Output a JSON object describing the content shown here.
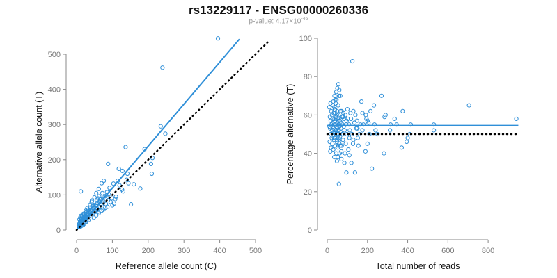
{
  "title": "rs13229117 - ENSG00000260336",
  "subtitle": {
    "prefix": "p-value: 4.17",
    "times": "×10",
    "exponent": "-46"
  },
  "colors": {
    "points": "#2f8fd8",
    "fit_line": "#2f8fd8",
    "reference_line": "#000000",
    "axis": "#888888"
  },
  "chart_data": [
    {
      "type": "scatter",
      "xlabel": "Reference allele count (C)",
      "ylabel": "Alternative allele count (T)",
      "xlim": [
        0,
        500
      ],
      "ylim": [
        0,
        500
      ],
      "xticks": [
        0,
        100,
        200,
        300,
        400,
        500
      ],
      "yticks": [
        0,
        100,
        200,
        300,
        400,
        500
      ],
      "grid": false,
      "lines": [
        {
          "style": "solid",
          "color": "#2f8fd8",
          "x": [
            0,
            455
          ],
          "y": [
            0,
            543
          ]
        },
        {
          "style": "dotted",
          "color": "#000000",
          "x": [
            0,
            540
          ],
          "y": [
            0,
            540
          ]
        }
      ],
      "points": [
        [
          395,
          545
        ],
        [
          240,
          462
        ],
        [
          235,
          295
        ],
        [
          248,
          274
        ],
        [
          137,
          236
        ],
        [
          190,
          230
        ],
        [
          212,
          205
        ],
        [
          208,
          188
        ],
        [
          210,
          160
        ],
        [
          178,
          118
        ],
        [
          152,
          73
        ],
        [
          128,
          168
        ],
        [
          118,
          174
        ],
        [
          88,
          188
        ],
        [
          140,
          143
        ],
        [
          142,
          160
        ],
        [
          115,
          140
        ],
        [
          120,
          127
        ],
        [
          103,
          132
        ],
        [
          92,
          120
        ],
        [
          85,
          108
        ],
        [
          70,
          133
        ],
        [
          76,
          140
        ],
        [
          62,
          117
        ],
        [
          72,
          105
        ],
        [
          55,
          105
        ],
        [
          50,
          93
        ],
        [
          60,
          90
        ],
        [
          43,
          84
        ],
        [
          48,
          71
        ],
        [
          38,
          64
        ],
        [
          33,
          58
        ],
        [
          28,
          53
        ],
        [
          24,
          49
        ],
        [
          20,
          43
        ],
        [
          17,
          38
        ],
        [
          14,
          33
        ],
        [
          12,
          29
        ],
        [
          10,
          25
        ],
        [
          9,
          21
        ],
        [
          8,
          18
        ],
        [
          7,
          16
        ],
        [
          12,
          110
        ],
        [
          80,
          63
        ],
        [
          95,
          80
        ],
        [
          105,
          75
        ],
        [
          110,
          95
        ],
        [
          127,
          115
        ],
        [
          130,
          110
        ],
        [
          160,
          130
        ],
        [
          145,
          133
        ],
        [
          83,
          98
        ],
        [
          66,
          87
        ],
        [
          57,
          77
        ],
        [
          45,
          68
        ],
        [
          40,
          58
        ],
        [
          36,
          52
        ],
        [
          31,
          47
        ],
        [
          27,
          44
        ],
        [
          24,
          40
        ],
        [
          21,
          36
        ],
        [
          18,
          32
        ],
        [
          15,
          28
        ],
        [
          13,
          26
        ],
        [
          11,
          22
        ],
        [
          9,
          19
        ],
        [
          16,
          22
        ],
        [
          20,
          28
        ],
        [
          25,
          30
        ],
        [
          30,
          38
        ],
        [
          35,
          40
        ],
        [
          40,
          45
        ],
        [
          46,
          50
        ],
        [
          52,
          55
        ],
        [
          58,
          60
        ],
        [
          65,
          65
        ],
        [
          70,
          72
        ],
        [
          75,
          80
        ],
        [
          88,
          85
        ],
        [
          98,
          90
        ],
        [
          108,
          88
        ],
        [
          28,
          25
        ],
        [
          22,
          18
        ],
        [
          18,
          14
        ],
        [
          14,
          12
        ],
        [
          11,
          10
        ],
        [
          9,
          8
        ],
        [
          13,
          17
        ],
        [
          17,
          24
        ],
        [
          23,
          32
        ],
        [
          29,
          36
        ],
        [
          34,
          44
        ],
        [
          39,
          51
        ],
        [
          44,
          59
        ],
        [
          49,
          64
        ],
        [
          54,
          69
        ],
        [
          59,
          76
        ],
        [
          64,
          80
        ],
        [
          69,
          88
        ],
        [
          79,
          96
        ],
        [
          90,
          102
        ],
        [
          38,
          72
        ],
        [
          42,
          80
        ],
        [
          30,
          62
        ],
        [
          26,
          55
        ],
        [
          19,
          46
        ],
        [
          15,
          40
        ],
        [
          48,
          35
        ],
        [
          55,
          42
        ],
        [
          62,
          48
        ],
        [
          70,
          55
        ],
        [
          33,
          28
        ],
        [
          26,
          22
        ],
        [
          20,
          20
        ],
        [
          60,
          52
        ],
        [
          75,
          58
        ],
        [
          82,
          74
        ],
        [
          86,
          66
        ],
        [
          100,
          70
        ],
        [
          8,
          30
        ],
        [
          10,
          35
        ],
        [
          12,
          40
        ],
        [
          6,
          12
        ],
        [
          7,
          9
        ],
        [
          10,
          13
        ],
        [
          16,
          18
        ],
        [
          19,
          26
        ],
        [
          22,
          30
        ],
        [
          27,
          34
        ],
        [
          32,
          42
        ],
        [
          37,
          48
        ],
        [
          41,
          54
        ],
        [
          47,
          61
        ],
        [
          53,
          70
        ],
        [
          57,
          84
        ],
        [
          63,
          96
        ],
        [
          68,
          75
        ],
        [
          73,
          86
        ]
      ]
    },
    {
      "type": "scatter",
      "xlabel": "Total number of reads",
      "ylabel": "Percentage alternative (T)",
      "xlim": [
        0,
        900
      ],
      "ylim": [
        0,
        100
      ],
      "xticks": [
        0,
        200,
        400,
        600,
        800
      ],
      "yticks": [
        0,
        20,
        40,
        60,
        80,
        100
      ],
      "grid": false,
      "lines": [
        {
          "style": "solid",
          "color": "#2f8fd8",
          "x": [
            0,
            950
          ],
          "y": [
            54.5,
            54.5
          ]
        },
        {
          "style": "dotted",
          "color": "#000000",
          "x": [
            0,
            950
          ],
          "y": [
            50,
            50
          ]
        }
      ],
      "points": [
        [
          940,
          58
        ],
        [
          705,
          65
        ],
        [
          530,
          55
        ],
        [
          530,
          52
        ],
        [
          415,
          55
        ],
        [
          410,
          50
        ],
        [
          400,
          48
        ],
        [
          395,
          46
        ],
        [
          375,
          62
        ],
        [
          370,
          43
        ],
        [
          345,
          55
        ],
        [
          335,
          58
        ],
        [
          315,
          55
        ],
        [
          312,
          52
        ],
        [
          290,
          60
        ],
        [
          285,
          59
        ],
        [
          282,
          40
        ],
        [
          270,
          70
        ],
        [
          250,
          50
        ],
        [
          240,
          52
        ],
        [
          235,
          55
        ],
        [
          232,
          65
        ],
        [
          222,
          32
        ],
        [
          215,
          62
        ],
        [
          210,
          50
        ],
        [
          205,
          56
        ],
        [
          200,
          45
        ],
        [
          195,
          58
        ],
        [
          192,
          60
        ],
        [
          190,
          41
        ],
        [
          180,
          55
        ],
        [
          175,
          52
        ],
        [
          170,
          67
        ],
        [
          165,
          55
        ],
        [
          160,
          50
        ],
        [
          155,
          44
        ],
        [
          152,
          48
        ],
        [
          148,
          57
        ],
        [
          145,
          53
        ],
        [
          140,
          60
        ],
        [
          138,
          30
        ],
        [
          135,
          56
        ],
        [
          130,
          62
        ],
        [
          128,
          45
        ],
        [
          125,
          88
        ],
        [
          123,
          50
        ],
        [
          120,
          35
        ],
        [
          118,
          58
        ],
        [
          115,
          61
        ],
        [
          112,
          52
        ],
        [
          110,
          48
        ],
        [
          108,
          55
        ],
        [
          105,
          42
        ],
        [
          102,
          58
        ],
        [
          100,
          63
        ],
        [
          98,
          50
        ],
        [
          96,
          57
        ],
        [
          94,
          55
        ],
        [
          92,
          45
        ],
        [
          90,
          60
        ],
        [
          88,
          40
        ],
        [
          86,
          52
        ],
        [
          84,
          58
        ],
        [
          82,
          54
        ],
        [
          80,
          61
        ],
        [
          78,
          47
        ],
        [
          76,
          55
        ],
        [
          75,
          50
        ],
        [
          74,
          59
        ],
        [
          72,
          44
        ],
        [
          70,
          56
        ],
        [
          68,
          53
        ],
        [
          66,
          62
        ],
        [
          64,
          49
        ],
        [
          62,
          57
        ],
        [
          60,
          45
        ],
        [
          59,
          70
        ],
        [
          58,
          55
        ],
        [
          57,
          52
        ],
        [
          56,
          60
        ],
        [
          55,
          48
        ],
        [
          54,
          65
        ],
        [
          53,
          43
        ],
        [
          52,
          58
        ],
        [
          51,
          50
        ],
        [
          50,
          56
        ],
        [
          49,
          62
        ],
        [
          48,
          46
        ],
        [
          47,
          54
        ],
        [
          46,
          68
        ],
        [
          45,
          40
        ],
        [
          44,
          59
        ],
        [
          43,
          52
        ],
        [
          42,
          66
        ],
        [
          41,
          48
        ],
        [
          40,
          57
        ],
        [
          39,
          44
        ],
        [
          38,
          63
        ],
        [
          37,
          51
        ],
        [
          36,
          70
        ],
        [
          35,
          38
        ],
        [
          34,
          55
        ],
        [
          33,
          47
        ],
        [
          32,
          61
        ],
        [
          31,
          53
        ],
        [
          30,
          42
        ],
        [
          29,
          58
        ],
        [
          28,
          65
        ],
        [
          27,
          49
        ],
        [
          26,
          56
        ],
        [
          25,
          45
        ],
        [
          24,
          52
        ],
        [
          23,
          60
        ],
        [
          22,
          48
        ],
        [
          21,
          55
        ],
        [
          20,
          62
        ],
        [
          19,
          43
        ],
        [
          18,
          50
        ],
        [
          17,
          57
        ],
        [
          16,
          66
        ],
        [
          15,
          41
        ],
        [
          14,
          53
        ],
        [
          13,
          59
        ],
        [
          12,
          46
        ],
        [
          11,
          54
        ],
        [
          10,
          64
        ],
        [
          50,
          74
        ],
        [
          55,
          76
        ],
        [
          60,
          73
        ],
        [
          45,
          72
        ],
        [
          40,
          68
        ],
        [
          65,
          70
        ],
        [
          58,
          24
        ],
        [
          48,
          36
        ],
        [
          52,
          38
        ],
        [
          62,
          40
        ],
        [
          70,
          37
        ],
        [
          85,
          35
        ],
        [
          95,
          30
        ],
        [
          110,
          39
        ],
        [
          130,
          47
        ],
        [
          150,
          53
        ],
        [
          175,
          61
        ],
        [
          200,
          57
        ],
        [
          30,
          67
        ],
        [
          35,
          64
        ],
        [
          40,
          61
        ],
        [
          45,
          58
        ],
        [
          50,
          53
        ],
        [
          55,
          50
        ],
        [
          60,
          47
        ],
        [
          65,
          44
        ],
        [
          70,
          41
        ],
        [
          35,
          48
        ],
        [
          40,
          52
        ],
        [
          45,
          50
        ],
        [
          50,
          47
        ],
        [
          55,
          44
        ],
        [
          28,
          54
        ],
        [
          32,
          51
        ],
        [
          36,
          58
        ],
        [
          42,
          55
        ],
        [
          48,
          60
        ],
        [
          54,
          57
        ],
        [
          60,
          54
        ],
        [
          66,
          51
        ],
        [
          72,
          62
        ],
        [
          78,
          59
        ]
      ]
    }
  ]
}
